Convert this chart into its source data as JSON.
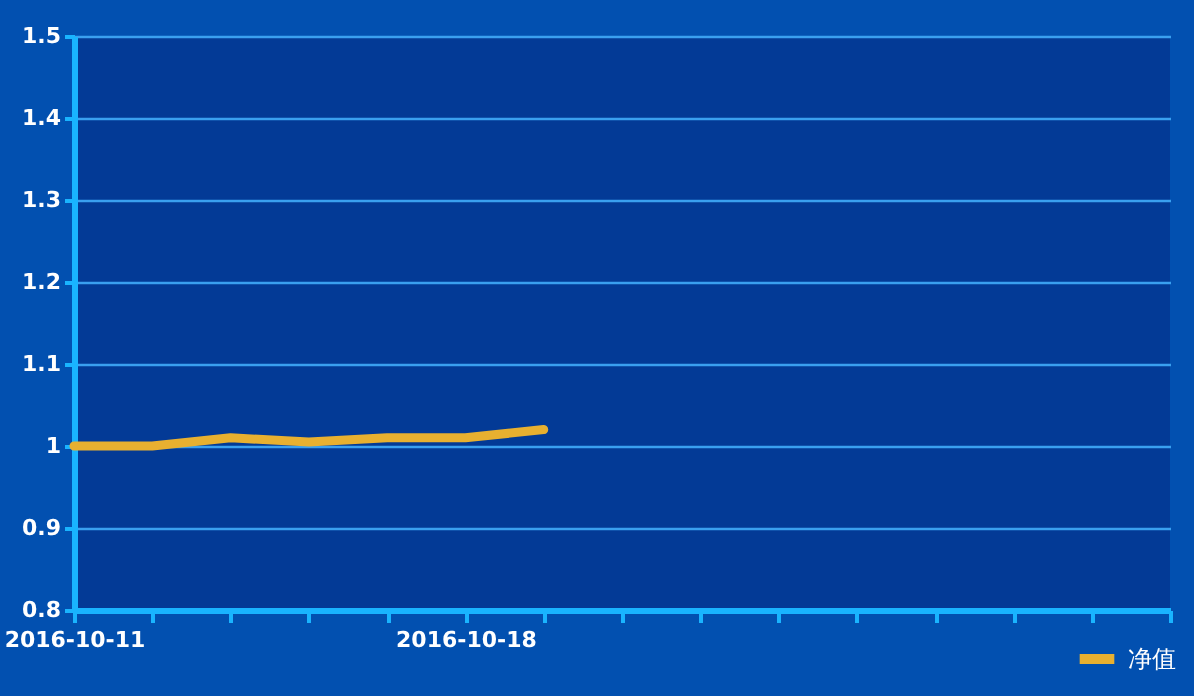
{
  "chart_data": {
    "type": "line",
    "categories": [
      "2016-10-11",
      null,
      null,
      null,
      null,
      "2016-10-18",
      null,
      null,
      null,
      null,
      null,
      null,
      null,
      null,
      null
    ],
    "series": [
      {
        "name": "净值",
        "color": "#e8b030",
        "values": [
          1.0,
          1.0,
          1.01,
          1.005,
          1.01,
          1.01,
          1.02,
          null,
          null,
          null,
          null,
          null,
          null,
          null,
          null
        ]
      }
    ],
    "ylim": [
      0.8,
      1.5
    ],
    "yticks": [
      0.8,
      0.9,
      1,
      1.1,
      1.2,
      1.3,
      1.4,
      1.5
    ],
    "grid": "y",
    "legend": "bottom right",
    "marker": "none",
    "line_style": "solid"
  }
}
